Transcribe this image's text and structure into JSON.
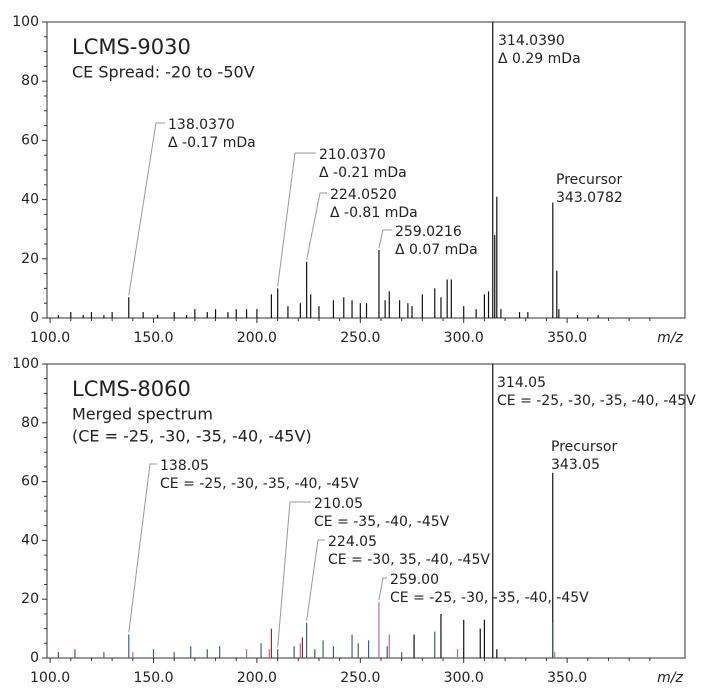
{
  "chart_data": [
    {
      "type": "bar",
      "title": "LCMS-9030",
      "subtitle": [
        "CE Spread: -20 to -50V"
      ],
      "x_label": "m/z",
      "xlim": [
        98.5,
        407
      ],
      "ylim": [
        0,
        100
      ],
      "xticks": [
        {
          "value": 100,
          "label": "100.0"
        },
        {
          "value": 150,
          "label": "150.0"
        },
        {
          "value": 200,
          "label": "200.0"
        },
        {
          "value": 250,
          "label": "250.0"
        },
        {
          "value": 300,
          "label": "300.0"
        },
        {
          "value": 350,
          "label": "350.0"
        }
      ],
      "yticks": [
        0,
        20,
        40,
        60,
        80,
        100
      ],
      "series": [
        {
          "color": "#111111",
          "x": [
            104,
            110,
            116,
            120,
            126,
            130,
            138.037,
            145,
            152,
            160,
            166,
            170,
            176,
            180,
            186,
            190,
            195,
            200,
            207,
            210.037,
            215,
            221,
            224.052,
            226,
            230,
            237,
            242,
            246,
            250,
            253,
            259.0216,
            262,
            264,
            269,
            273,
            275,
            280,
            286,
            289,
            292,
            294,
            300,
            306,
            310,
            312,
            314.039,
            315,
            316,
            318,
            327,
            331,
            343.0782,
            345,
            346,
            355,
            365
          ],
          "values": [
            1,
            2,
            1,
            2,
            1,
            2,
            7,
            2,
            1,
            2,
            1,
            3,
            2,
            3,
            2,
            3,
            3,
            3,
            8,
            10,
            4,
            5,
            19,
            8,
            4,
            6,
            7,
            6,
            5,
            5,
            23,
            6,
            9,
            6,
            5,
            4,
            8,
            10,
            7,
            13,
            13,
            4,
            3,
            8,
            9,
            100,
            28,
            41,
            3,
            2,
            2,
            39,
            16,
            3,
            1,
            1
          ]
        }
      ],
      "annotations": [
        {
          "x": 138.037,
          "label": "138.0370",
          "note": "Δ -0.17 mDa",
          "color": "#a0483a"
        },
        {
          "x": 210.037,
          "label": "210.0370",
          "note": "Δ -0.21 mDa",
          "color": "#5b7186"
        },
        {
          "x": 224.052,
          "label": "224.0520",
          "note": "Δ -0.81 mDa",
          "color": "#e8845a"
        },
        {
          "x": 259.0216,
          "label": "259.0216",
          "note": "Δ 0.07 mDa",
          "color": "#4e7a62"
        },
        {
          "x": 314.039,
          "label": "314.0390",
          "note": "Δ 0.29 mDa",
          "color": "#c77bbd"
        },
        {
          "x": 343.0782,
          "title": "Precursor",
          "label": "343.0782",
          "color": "#666666"
        }
      ]
    },
    {
      "type": "bar",
      "title": "LCMS-8060",
      "subtitle": [
        "Merged spectrum",
        "(CE = -25, -30, -35, -40, -45V)"
      ],
      "x_label": "m/z",
      "xlim": [
        98.5,
        407
      ],
      "ylim": [
        0,
        100
      ],
      "xticks": [
        {
          "value": 100,
          "label": "100.0"
        },
        {
          "value": 150,
          "label": "150.0"
        },
        {
          "value": 200,
          "label": "200.0"
        },
        {
          "value": 250,
          "label": "250.0"
        },
        {
          "value": 300,
          "label": "300.0"
        },
        {
          "value": 350,
          "label": "350.0"
        }
      ],
      "yticks": [
        0,
        20,
        40,
        60,
        80,
        100
      ],
      "series": [
        {
          "color": "#111111",
          "x": [
            276,
            289,
            300,
            308,
            310,
            314.05,
            316,
            343.05
          ],
          "values": [
            8,
            15,
            13,
            10,
            13,
            100,
            3,
            63
          ]
        },
        {
          "color": "#3b5f9a",
          "x": [
            112,
            126,
            138.05,
            150,
            168,
            182,
            202,
            210.05,
            224.05,
            237,
            246,
            254,
            270
          ],
          "values": [
            3,
            2,
            8,
            3,
            4,
            4,
            5,
            3,
            12,
            4,
            8,
            6,
            2
          ]
        },
        {
          "color": "#c060b0",
          "x": [
            140,
            195,
            206,
            221,
            259,
            264,
            297,
            344
          ],
          "values": [
            2,
            3,
            3,
            5,
            19,
            8,
            3,
            2
          ]
        },
        {
          "color": "#2f6b50",
          "x": [
            104,
            160,
            176,
            218,
            228,
            232,
            249,
            263,
            286,
            343
          ],
          "values": [
            2,
            2,
            3,
            4,
            3,
            6,
            5,
            4,
            9,
            12
          ]
        },
        {
          "color": "#8b2e22",
          "x": [
            207,
            222
          ],
          "values": [
            10,
            7
          ]
        }
      ],
      "annotations": [
        {
          "x": 138.05,
          "label": "138.05",
          "note": "CE = -25, -30, -35, -40, -45V",
          "color": "#a0483a"
        },
        {
          "x": 210.05,
          "label": "210.05",
          "note": "CE = -35, -40, -45V",
          "color": "#5b7186"
        },
        {
          "x": 224.05,
          "label": "224.05",
          "note": "CE = -30, 35, -40, -45V",
          "color": "#e8845a"
        },
        {
          "x": 259.0,
          "label": "259.00",
          "note": "CE = -25, -30, -35, -40, -45V",
          "color": "#4e7a62"
        },
        {
          "x": 314.05,
          "label": "314.05",
          "note": "CE = -25, -30, -35, -40, -45V",
          "color": "#c77bbd"
        },
        {
          "x": 343.05,
          "title": "Precursor",
          "label": "343.05",
          "color": "#666666"
        }
      ]
    }
  ]
}
